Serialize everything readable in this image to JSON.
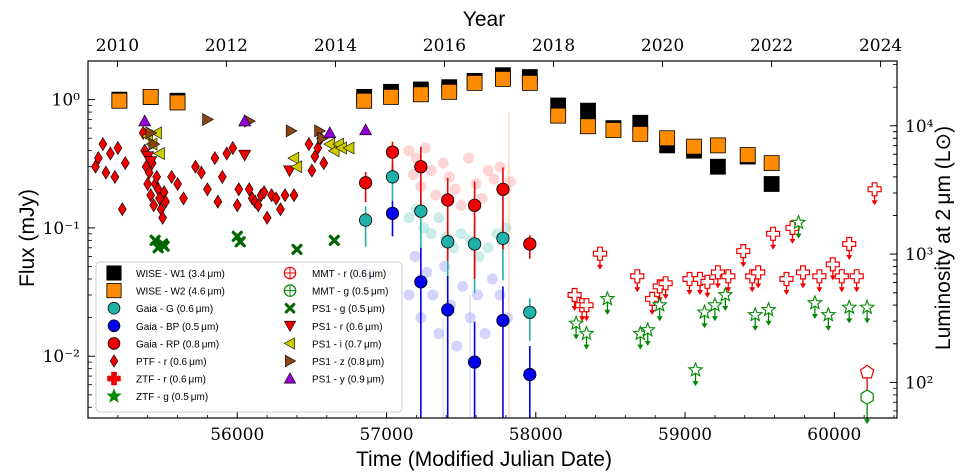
{
  "chart_data": {
    "type": "scatter",
    "title": "",
    "xlabel": "Time (Modified Julian Date)",
    "ylabel": "Flux (mJy)",
    "x2label": "Year",
    "y2label": "Luminosity at 2 μm (L⊙)",
    "xlim": [
      55000,
      60420
    ],
    "ylim": [
      0.0033,
      2.0
    ],
    "yscale": "log",
    "grid": false,
    "legend_position": "lower-left",
    "x_ticks": [
      56000,
      57000,
      58000,
      59000,
      60000
    ],
    "x_tick_labels": [
      "56000",
      "57000",
      "58000",
      "59000",
      "60000"
    ],
    "y_ticks": [
      0.01,
      0.1,
      1
    ],
    "y_tick_labels": [
      "10⁻²",
      "10⁻¹",
      "10⁰"
    ],
    "top_ticks": [
      2010,
      2012,
      2014,
      2016,
      2018,
      2020,
      2022,
      2024
    ],
    "top_tick_mjd": [
      55197,
      55927,
      56658,
      57388,
      58119,
      58849,
      59580,
      60310
    ],
    "right_ticks": [
      "10²",
      "10³",
      "10⁴"
    ],
    "right_tick_flux": [
      0.00625,
      0.0625,
      0.625
    ],
    "series": [
      {
        "name": "WISE - W1 (3.4 μm)",
        "marker": "square",
        "color": "#000000",
        "edge": "#000000",
        "x": [
          55210,
          55420,
          55600,
          56850,
          57030,
          57230,
          57420,
          57590,
          57780,
          57960,
          58150,
          58350,
          58520,
          58700,
          58880,
          59060,
          59220,
          59420,
          59580
        ],
        "y": [
          1.0,
          1.05,
          0.98,
          1.05,
          1.15,
          1.2,
          1.25,
          1.4,
          1.55,
          1.5,
          0.9,
          0.82,
          0.6,
          0.66,
          0.44,
          0.4,
          0.3,
          0.36,
          0.22
        ]
      },
      {
        "name": "WISE - W2 (4.6 μm)",
        "marker": "square",
        "color": "#ff8c00",
        "edge": "#000000",
        "x": [
          55210,
          55420,
          55600,
          56850,
          57030,
          57230,
          57420,
          57590,
          57780,
          57960,
          58150,
          58350,
          58520,
          58700,
          58880,
          59060,
          59220,
          59420,
          59580
        ],
        "y": [
          0.98,
          1.05,
          0.95,
          0.98,
          1.05,
          1.1,
          1.15,
          1.35,
          1.45,
          1.35,
          0.75,
          0.62,
          0.58,
          0.54,
          0.5,
          0.43,
          0.44,
          0.37,
          0.32
        ]
      },
      {
        "name": "Gaia - G (0.6 μm)",
        "marker": "circle",
        "color": "#20b2aa",
        "edge": "#000000",
        "x": [
          56860,
          57040,
          57230,
          57410,
          57590,
          57780,
          57960
        ],
        "y": [
          0.115,
          0.25,
          0.135,
          0.078,
          0.075,
          0.083,
          0.022
        ],
        "err": [
          0.02,
          0.04,
          0.03,
          0.02,
          0.02,
          0.02,
          0.004
        ]
      },
      {
        "name": "Gaia - BP (0.5 μm)",
        "marker": "circle",
        "color": "#0000ee",
        "edge": "#000000",
        "x": [
          56860,
          57040,
          57230,
          57410,
          57590,
          57780,
          57960
        ],
        "y": [
          0.043,
          0.13,
          0.038,
          0.023,
          0.009,
          0.019,
          0.0072
        ],
        "err": [
          0.006,
          0.02,
          0.02,
          0.012,
          0.006,
          0.01,
          0.003
        ]
      },
      {
        "name": "Gaia - RP (0.8 μm)",
        "marker": "circle",
        "color": "#ee0000",
        "edge": "#000000",
        "x": [
          56860,
          57040,
          57230,
          57410,
          57590,
          57780,
          57960
        ],
        "y": [
          0.225,
          0.39,
          0.3,
          0.165,
          0.15,
          0.2,
          0.075
        ],
        "err": [
          0.03,
          0.05,
          0.08,
          0.05,
          0.05,
          0.06,
          0.008
        ]
      },
      {
        "name": "PTF - r (0.6 μm)",
        "marker": "diamond",
        "color": "#ee0000",
        "edge": "#000000",
        "x": [
          55050,
          55070,
          55100,
          55120,
          55150,
          55180,
          55200,
          55230,
          55250,
          55370,
          55380,
          55390,
          55400,
          55410,
          55420,
          55430,
          55440,
          55450,
          55460,
          55470,
          55480,
          55490,
          55500,
          55510,
          55520,
          55560,
          55600,
          55640,
          55720,
          55760,
          55800,
          55850,
          55870,
          55900,
          55930,
          55970,
          56000,
          56010,
          56080,
          56100,
          56120,
          56140,
          56160,
          56180,
          56200,
          56230,
          56260,
          56290,
          56320,
          56380,
          56480,
          56500,
          56520,
          56540,
          56560,
          56580
        ],
        "y": [
          0.3,
          0.35,
          0.45,
          0.27,
          0.38,
          0.25,
          0.42,
          0.14,
          0.32,
          0.55,
          0.4,
          0.3,
          0.22,
          0.27,
          0.18,
          0.32,
          0.15,
          0.22,
          0.25,
          0.2,
          0.17,
          0.14,
          0.12,
          0.19,
          0.16,
          0.25,
          0.22,
          0.17,
          0.3,
          0.27,
          0.2,
          0.35,
          0.16,
          0.25,
          0.38,
          0.42,
          0.15,
          0.2,
          0.2,
          0.17,
          0.16,
          0.15,
          0.18,
          0.19,
          0.12,
          0.18,
          0.17,
          0.14,
          0.18,
          0.18,
          0.45,
          0.28,
          0.36,
          0.42,
          0.5,
          0.32
        ]
      },
      {
        "name": "ZTF - r (0.6 μm)",
        "marker": "cross-limit",
        "color": "#ee0000",
        "x": [
          58260,
          58310,
          58340,
          58430,
          58680,
          58780,
          58830,
          58870,
          59030,
          59100,
          59150,
          59220,
          59290,
          59390,
          59450,
          59490,
          59590,
          59680,
          59720,
          59790,
          59900,
          59990,
          60050,
          60100,
          60150,
          60270
        ],
        "y": [
          0.03,
          0.025,
          0.025,
          0.063,
          0.042,
          0.028,
          0.035,
          0.037,
          0.04,
          0.04,
          0.038,
          0.045,
          0.042,
          0.066,
          0.042,
          0.045,
          0.09,
          0.04,
          0.1,
          0.045,
          0.042,
          0.052,
          0.042,
          0.075,
          0.042,
          0.2
        ]
      },
      {
        "name": "ZTF - g (0.5 μm)",
        "marker": "star-limit",
        "color": "#008800",
        "x": [
          58270,
          58340,
          58480,
          58700,
          58750,
          58830,
          59070,
          59130,
          59200,
          59270,
          59470,
          59560,
          59760,
          59870,
          59960,
          60100,
          60220
        ],
        "y": [
          0.018,
          0.015,
          0.028,
          0.015,
          0.016,
          0.025,
          0.0078,
          0.022,
          0.025,
          0.03,
          0.021,
          0.023,
          0.11,
          0.026,
          0.021,
          0.024,
          0.024
        ]
      },
      {
        "name": "MMT - r (0.6 μm)",
        "marker": "pentagon-limit",
        "color": "#ee0000",
        "x": [
          60220
        ],
        "y": [
          0.0075
        ]
      },
      {
        "name": "MMT - g (0.5 μm)",
        "marker": "hexagon-limit",
        "color": "#008800",
        "x": [
          60220
        ],
        "y": [
          0.0048
        ]
      },
      {
        "name": "PS1 - g (0.5 μm)",
        "marker": "x",
        "color": "#006400",
        "x": [
          55450,
          55470,
          55500,
          55510,
          56000,
          56020,
          56400,
          56650
        ],
        "y": [
          0.08,
          0.07,
          0.075,
          0.072,
          0.086,
          0.078,
          0.068,
          0.08
        ]
      },
      {
        "name": "PS1 - r (0.6 μm)",
        "marker": "triangle-down",
        "color": "#ee0000",
        "x": [
          55400,
          55420,
          56050,
          56350
        ],
        "y": [
          0.36,
          0.33,
          0.37,
          0.28
        ]
      },
      {
        "name": "PS1 - i (0.7 μm)",
        "marker": "triangle-left",
        "color": "#cccc00",
        "x": [
          55400,
          55430,
          55460,
          55480,
          56380,
          56400,
          56620,
          56650,
          56680,
          56700,
          56750
        ],
        "y": [
          0.52,
          0.45,
          0.55,
          0.38,
          0.35,
          0.3,
          0.45,
          0.4,
          0.45,
          0.42,
          0.42
        ]
      },
      {
        "name": "PS1 - z (0.8 μm)",
        "marker": "triangle-right",
        "color": "#8b4513",
        "x": [
          55420,
          55440,
          55800,
          56080,
          56360,
          56550,
          56570
        ],
        "y": [
          0.55,
          0.45,
          0.7,
          0.68,
          0.57,
          0.57,
          0.5
        ]
      },
      {
        "name": "PS1 - y (0.9 μm)",
        "marker": "triangle-up",
        "color": "#9400d3",
        "x": [
          55380,
          56050,
          56620,
          56860
        ],
        "y": [
          0.68,
          0.68,
          0.55,
          0.58
        ]
      }
    ],
    "faint_points": [
      {
        "color": "#ff6666",
        "x": [
          57150,
          57180,
          57200,
          57230,
          57260,
          57300,
          57330,
          57380,
          57420,
          57460,
          57500,
          57550,
          57600,
          57640,
          57680,
          57720,
          57760,
          57800,
          57830
        ],
        "y": [
          0.4,
          0.26,
          0.35,
          0.21,
          0.42,
          0.28,
          0.18,
          0.32,
          0.25,
          0.2,
          0.15,
          0.35,
          0.22,
          0.17,
          0.28,
          0.24,
          0.3,
          0.2,
          0.23
        ]
      },
      {
        "color": "#40c0b0",
        "x": [
          57150,
          57200,
          57250,
          57300,
          57350,
          57400,
          57450,
          57500,
          57560,
          57620,
          57680,
          57740,
          57800
        ],
        "y": [
          0.12,
          0.14,
          0.1,
          0.09,
          0.12,
          0.085,
          0.07,
          0.09,
          0.08,
          0.06,
          0.07,
          0.09,
          0.1
        ]
      },
      {
        "color": "#6666ff",
        "x": [
          57150,
          57190,
          57230,
          57270,
          57310,
          57350,
          57390,
          57430,
          57470,
          57510,
          57560,
          57610,
          57660,
          57710,
          57760,
          57810
        ],
        "y": [
          0.03,
          0.06,
          0.02,
          0.045,
          0.03,
          0.015,
          0.05,
          0.025,
          0.012,
          0.035,
          0.02,
          0.03,
          0.015,
          0.04,
          0.03,
          0.02
        ]
      }
    ]
  }
}
